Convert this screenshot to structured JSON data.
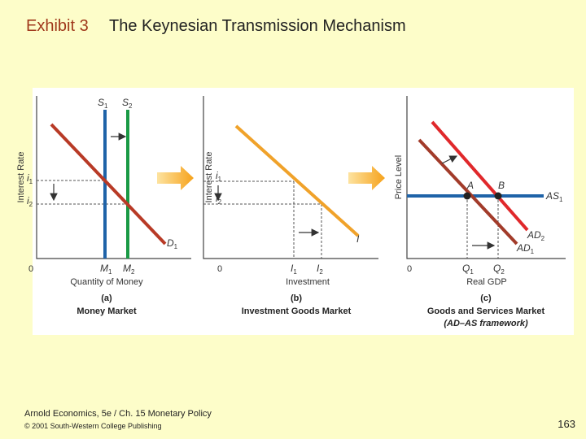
{
  "header": {
    "exhibit": "Exhibit 3",
    "title": "The Keynesian Transmission Mechanism"
  },
  "panels": [
    {
      "y_axis": "Interest Rate",
      "origin": "0",
      "x_axis": "Quantity of Money",
      "letter": "(a)",
      "caption": "Money Market",
      "labels": [
        "S1",
        "S2",
        "D1",
        "i1",
        "i2",
        "M1",
        "M2"
      ]
    },
    {
      "y_axis": "Interest Rate",
      "origin": "0",
      "x_axis": "Investment",
      "letter": "(b)",
      "caption": "Investment Goods Market",
      "labels": [
        "I",
        "i1",
        "i2",
        "I1",
        "I2"
      ]
    },
    {
      "y_axis": "Price Level",
      "origin": "0",
      "x_axis": "Real GDP",
      "letter": "(c)",
      "caption": "Goods and Services Market",
      "caption2": "(AD–AS framework)",
      "labels": [
        "A",
        "B",
        "AS1",
        "AD2",
        "AD1",
        "Q1",
        "Q2"
      ]
    }
  ],
  "footer": {
    "course": "Arnold Economics, 5e / Ch. 15 Monetary Policy",
    "copyright": "© 2001 South-Western College Publishing",
    "page": "163"
  }
}
